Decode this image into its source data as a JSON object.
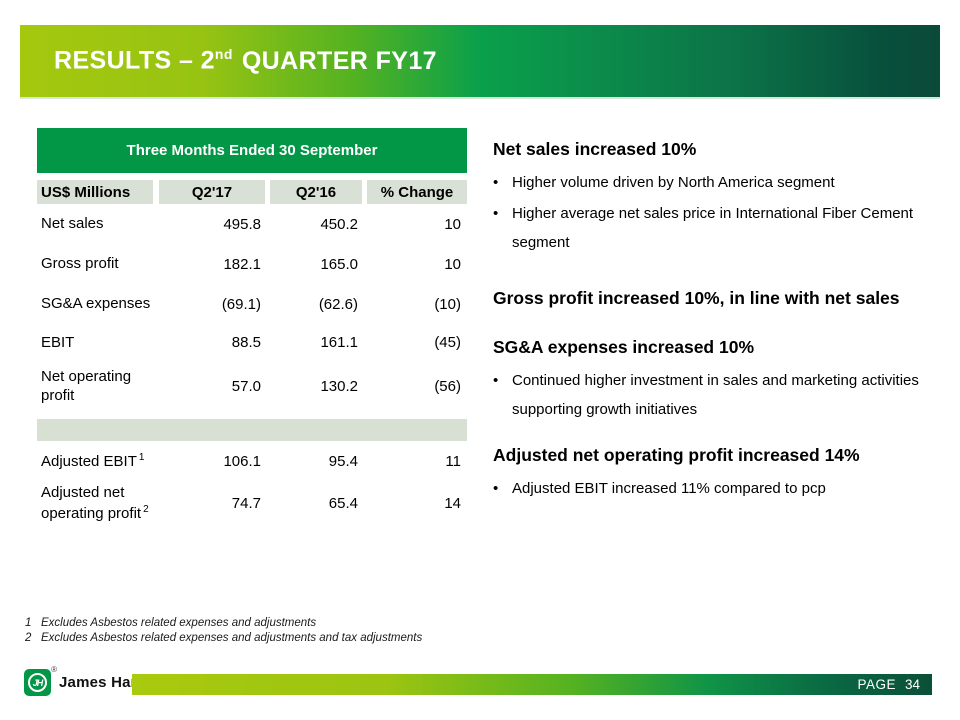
{
  "colors": {
    "brand_green": "#019746",
    "header_gradient_start": "#a5c80e",
    "header_gradient_end": "#0a4a38",
    "table_header_bg": "#d9e0d6",
    "separator_bg": "#d7e0d3"
  },
  "title": {
    "before_sup": "RESULTS – 2",
    "sup": "nd",
    "after_sup": "QUARTER FY17"
  },
  "table": {
    "title": "Three Months Ended 30 September",
    "columns": [
      "US$ Millions",
      "Q2'17",
      "Q2'16",
      "% Change"
    ],
    "rows": [
      {
        "label": "Net sales",
        "q2_17": "495.8",
        "q2_16": "450.2",
        "change": "10"
      },
      {
        "label": "Gross profit",
        "q2_17": "182.1",
        "q2_16": "165.0",
        "change": "10"
      },
      {
        "label": "SG&A expenses",
        "q2_17": "(69.1)",
        "q2_16": "(62.6)",
        "change": "(10)"
      },
      {
        "label": "EBIT",
        "q2_17": "88.5",
        "q2_16": "161.1",
        "change": "(45)"
      },
      {
        "label": "Net operating profit",
        "q2_17": "57.0",
        "q2_16": "130.2",
        "change": "(56)"
      }
    ],
    "adjusted_rows": [
      {
        "label": "Adjusted EBIT",
        "footnote_ref": "1",
        "q2_17": "106.1",
        "q2_16": "95.4",
        "change": "11"
      },
      {
        "label": "Adjusted net operating profit",
        "footnote_ref": "2",
        "q2_17": "74.7",
        "q2_16": "65.4",
        "change": "14"
      }
    ]
  },
  "commentary": [
    {
      "heading": "Net sales increased 10%",
      "bullets": [
        "Higher volume driven by North America segment",
        "Higher average net sales price in International Fiber Cement segment"
      ]
    },
    {
      "heading": "Gross profit increased 10%, in line with net sales",
      "bullets": []
    },
    {
      "heading": "SG&A expenses increased 10%",
      "bullets": [
        "Continued higher investment in sales and marketing activities supporting growth initiatives"
      ]
    },
    {
      "heading": "Adjusted net operating profit increased 14%",
      "bullets": [
        "Adjusted EBIT increased 11% compared to pcp"
      ]
    }
  ],
  "footnotes": [
    {
      "num": "1",
      "text": "Excludes Asbestos related expenses and adjustments"
    },
    {
      "num": "2",
      "text": "Excludes Asbestos related expenses and adjustments and tax adjustments"
    }
  ],
  "footer": {
    "brand": "James Hardie",
    "logo_monogram": "JH",
    "registered_mark": "®",
    "page_label": "PAGE",
    "page_number": "34"
  }
}
